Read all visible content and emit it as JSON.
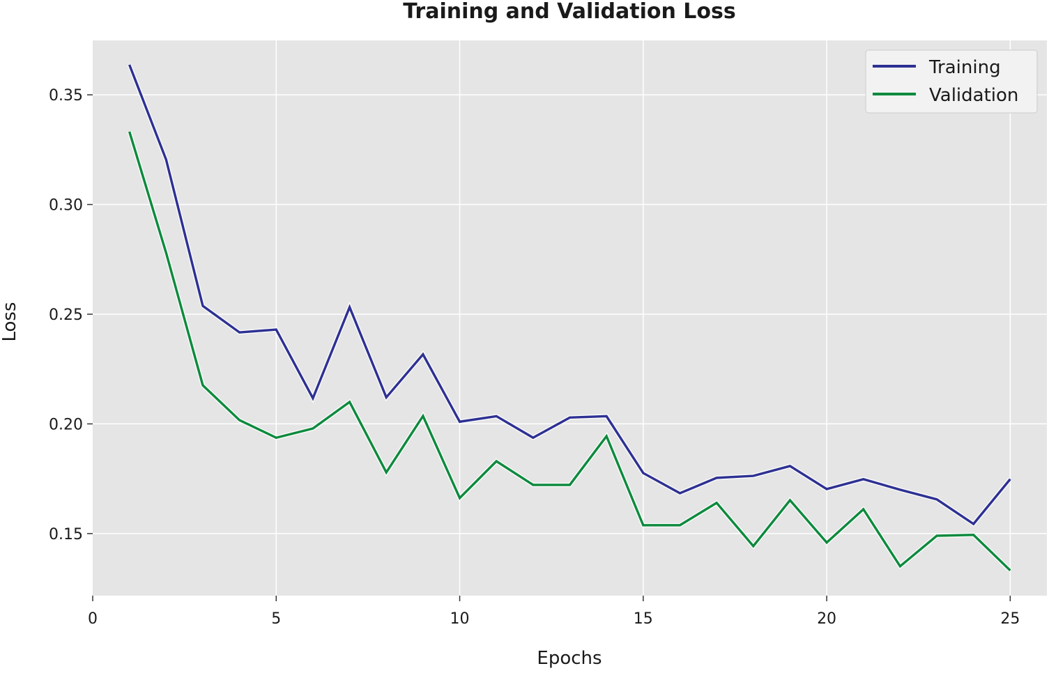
{
  "chart_data": {
    "type": "line",
    "title": "Training and Validation Loss",
    "xlabel": "Epochs",
    "ylabel": "Loss",
    "xlim": [
      0,
      26
    ],
    "ylim": [
      0.1217,
      0.3748
    ],
    "xticks": [
      0,
      5,
      10,
      15,
      20,
      25
    ],
    "yticks": [
      0.15,
      0.2,
      0.25,
      0.3,
      0.35
    ],
    "ytick_labels": [
      "0.15",
      "0.20",
      "0.25",
      "0.30",
      "0.35"
    ],
    "grid": true,
    "legend_position": "top-right",
    "background": "#e5e5e5",
    "x": [
      1,
      2,
      3,
      4,
      5,
      6,
      7,
      8,
      9,
      10,
      11,
      12,
      13,
      14,
      15,
      16,
      17,
      18,
      19,
      20,
      21,
      22,
      23,
      24,
      25
    ],
    "series": [
      {
        "name": "Training",
        "color": "#2e3192",
        "values": [
          0.3637,
          0.3205,
          0.2538,
          0.2417,
          0.243,
          0.2117,
          0.2532,
          0.2121,
          0.2317,
          0.201,
          0.2035,
          0.1937,
          0.2029,
          0.2035,
          0.1776,
          0.1684,
          0.1754,
          0.1763,
          0.1808,
          0.1703,
          0.1748,
          0.17,
          0.1656,
          0.1544,
          0.1748
        ]
      },
      {
        "name": "Validation",
        "color": "#0e8a3e",
        "values": [
          0.3332,
          0.278,
          0.2176,
          0.2017,
          0.1937,
          0.1979,
          0.21,
          0.1779,
          0.2036,
          0.1662,
          0.183,
          0.1722,
          0.1722,
          0.1944,
          0.1538,
          0.1538,
          0.164,
          0.1443,
          0.1652,
          0.1459,
          0.1611,
          0.1351,
          0.149,
          0.1494,
          0.1332
        ]
      }
    ]
  }
}
